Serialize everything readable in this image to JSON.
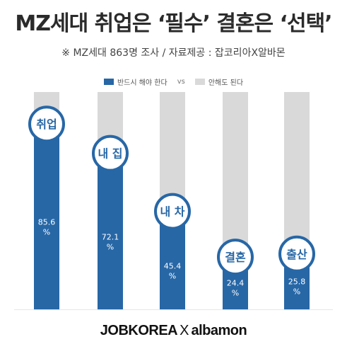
{
  "header": {
    "title": "MZ세대 취업은 ‘필수’ 결혼은 ‘선택’",
    "subtitle": "※ MZ세대 863명 조사 / 자료제공 : 잡코리아X알바몬"
  },
  "legend": {
    "vs_label": "vs"
  },
  "footer": {
    "brand_left": "JOBKOREA",
    "brand_separator": "X",
    "brand_right": "albamon"
  },
  "colors": {
    "primary": "#2767a6",
    "secondary": "#d9d9d9",
    "circle_text": "#2767a6",
    "value_text": "#ffffff"
  },
  "chart_data": {
    "type": "bar",
    "categories": [
      "취업",
      "내 집",
      "내 차",
      "결혼",
      "출산"
    ],
    "series": [
      {
        "name": "반드시 해야 한다",
        "values": [
          85.6,
          72.1,
          45.4,
          24.4,
          25.8
        ]
      },
      {
        "name": "안해도 된다",
        "values": [
          100,
          100,
          100,
          100,
          100
        ]
      }
    ],
    "value_unit": "%",
    "ylim": [
      0,
      100
    ],
    "stacked": "overlay",
    "legend_position": "top-center",
    "grid": false
  }
}
